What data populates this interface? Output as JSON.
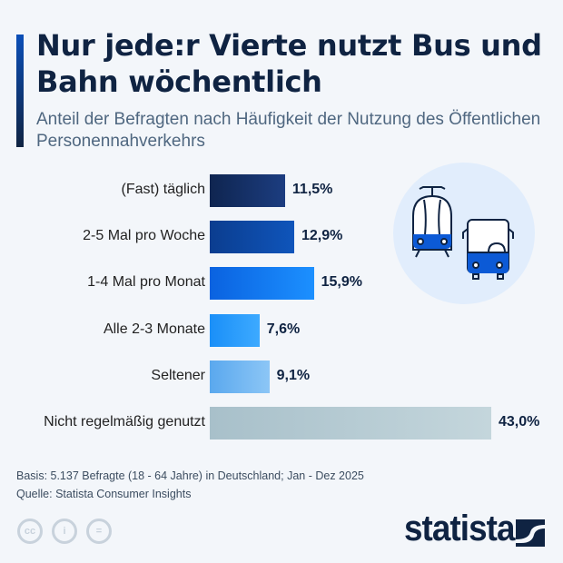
{
  "title": "Nur jede:r Vierte nutzt Bus und Bahn wöchentlich",
  "subtitle": "Anteil der Befragten nach Häufigkeit der Nutzung des Öffentlichen Personennahverkehrs",
  "chart_data": {
    "type": "bar",
    "orientation": "horizontal",
    "categories": [
      "(Fast) täglich",
      "2-5 Mal pro Woche",
      "1-4 Mal pro Monat",
      "Alle 2-3 Monate",
      "Seltener",
      "Nicht regelmäßig genutzt"
    ],
    "values": [
      11.5,
      12.9,
      15.9,
      7.6,
      9.1,
      43.0
    ],
    "value_labels": [
      "11,5%",
      "12,9%",
      "15,9%",
      "7,6%",
      "9,1%",
      "43,0%"
    ],
    "colors": [
      [
        "#0f2550",
        "#1c3d80"
      ],
      [
        "#0b3d8f",
        "#0f55bb"
      ],
      [
        "#0a62e0",
        "#1c90ff"
      ],
      [
        "#1a8ff8",
        "#3daaff"
      ],
      [
        "#5aa8ee",
        "#8cc6f6"
      ],
      [
        "#a8c0ca",
        "#c4d6dc"
      ]
    ],
    "unit": "%"
  },
  "footer": {
    "basis": "Basis: 5.137 Befragte (18 - 64 Jahre) in Deutschland; Jan - Dez 2025",
    "source": "Quelle: Statista Consumer Insights",
    "logo": "statista"
  },
  "icons": [
    "tram-icon",
    "bus-icon",
    "cc-icon",
    "by-icon",
    "nd-icon"
  ]
}
